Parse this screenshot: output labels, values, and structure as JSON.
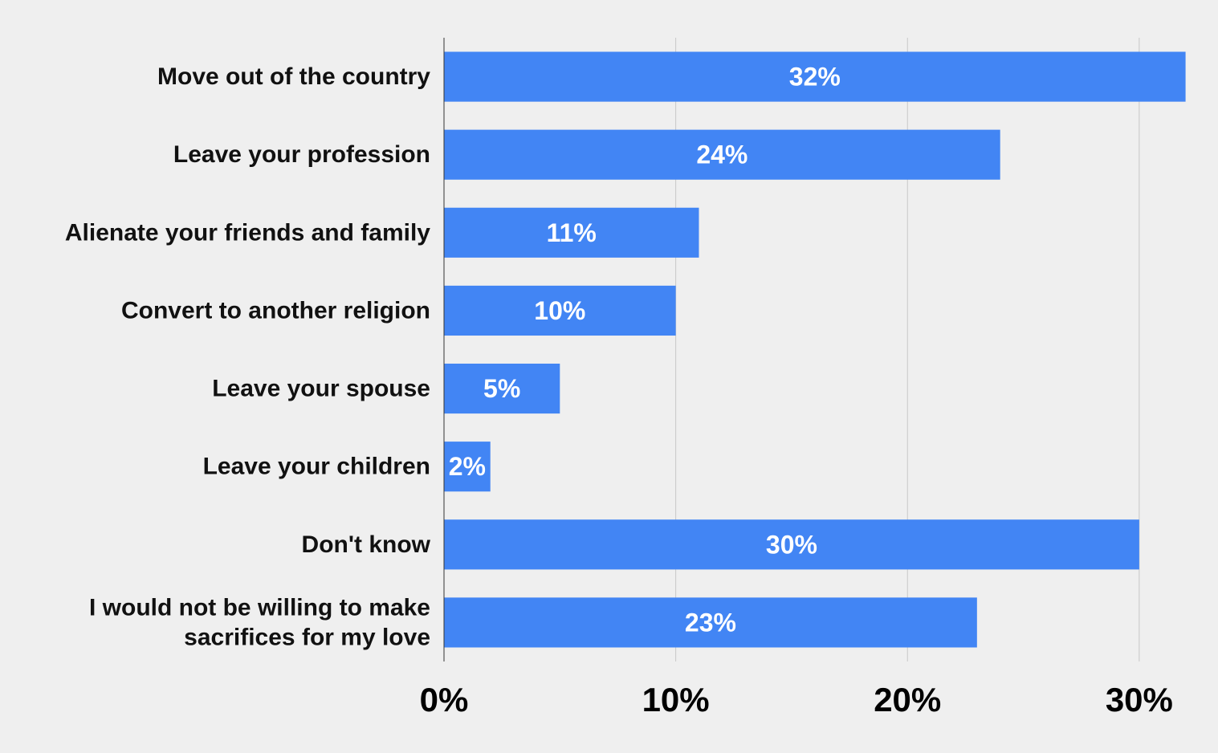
{
  "chart_data": {
    "type": "bar",
    "orientation": "horizontal",
    "categories": [
      [
        "Move out of the country"
      ],
      [
        "Leave your profession"
      ],
      [
        "Alienate your friends and family"
      ],
      [
        "Convert to another religion"
      ],
      [
        "Leave your spouse"
      ],
      [
        "Leave your children"
      ],
      [
        "Don't know"
      ],
      [
        "I would not be willing to make",
        "sacrifices for my love"
      ]
    ],
    "values": [
      32,
      24,
      11,
      10,
      5,
      2,
      30,
      23
    ],
    "data_labels": [
      "32%",
      "24%",
      "11%",
      "10%",
      "5%",
      "2%",
      "30%",
      "23%"
    ],
    "x_ticks": [
      0,
      10,
      20,
      30
    ],
    "x_tick_labels": [
      "0%",
      "10%",
      "20%",
      "30%"
    ],
    "xlim": [
      0,
      33.4
    ],
    "grid": true,
    "legend": "none",
    "bar_color": "#4285f4"
  }
}
